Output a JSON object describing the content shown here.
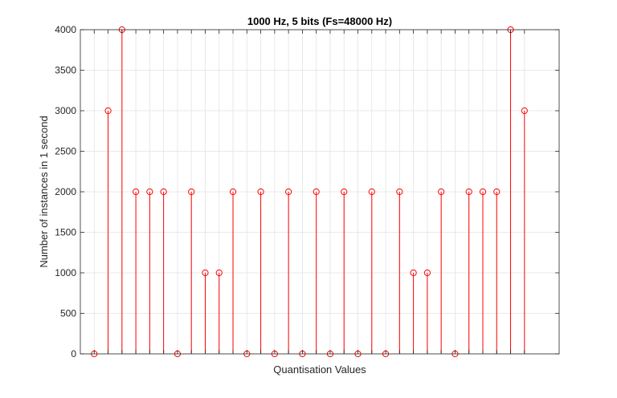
{
  "chart_data": {
    "type": "stem",
    "title": "1000 Hz, 5 bits (Fs=48000 Hz)",
    "xlabel": "Quantisation Values",
    "ylabel": "Number of instances in 1 second",
    "ylim": [
      0,
      4000
    ],
    "yticks": [
      0,
      500,
      1000,
      1500,
      2000,
      2500,
      3000,
      3500,
      4000
    ],
    "xticks_labeled": false,
    "grid": true,
    "legend": "none",
    "marker": "circle",
    "color": "#ff0000",
    "x": [
      1,
      2,
      3,
      4,
      5,
      6,
      7,
      8,
      9,
      10,
      11,
      12,
      13,
      14,
      15,
      16,
      17,
      18,
      19,
      20,
      21,
      22,
      23,
      24,
      25,
      26,
      27,
      28,
      29,
      30,
      31,
      32
    ],
    "values": [
      0,
      3000,
      4000,
      2000,
      2000,
      2000,
      0,
      2000,
      1000,
      1000,
      2000,
      0,
      2000,
      0,
      2000,
      0,
      2000,
      0,
      2000,
      0,
      2000,
      0,
      2000,
      1000,
      1000,
      2000,
      0,
      2000,
      2000,
      2000,
      4000,
      3000
    ]
  }
}
